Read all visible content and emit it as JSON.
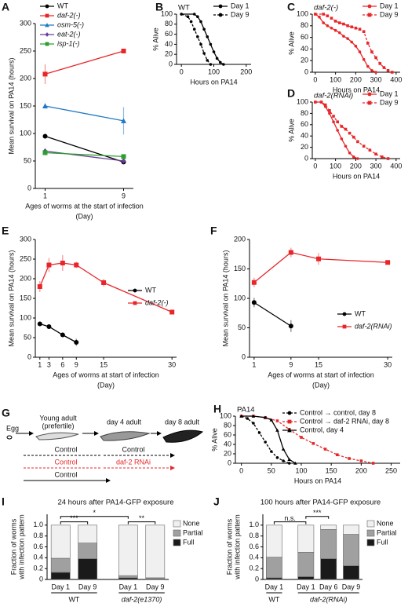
{
  "chart_data": [
    {
      "panel": "A",
      "type": "line",
      "ylabel": "Mean survival on PA14 (hours)",
      "xlabel": [
        "Ages of worms at the start of infection",
        "(Day)"
      ],
      "x": [
        1,
        9
      ],
      "xlim": [
        0,
        10
      ],
      "xticks": [
        1,
        9
      ],
      "ylim": [
        0,
        300
      ],
      "yticks": [
        0,
        50,
        100,
        150,
        200,
        250,
        300
      ],
      "legend": "top-left",
      "series": [
        {
          "name": "WT",
          "color": "#000000",
          "marker": "circle",
          "dash": false,
          "values": [
            95,
            48
          ],
          "errors": [
            3,
            3
          ]
        },
        {
          "name": "daf-2(-)",
          "color": "#e8262a",
          "marker": "square",
          "dash": false,
          "values": [
            208,
            250
          ],
          "errors": [
            18,
            4
          ]
        },
        {
          "name": "osm-5(-)",
          "color": "#1f78c8",
          "marker": "triangle",
          "dash": false,
          "values": [
            150,
            123
          ],
          "errors": [
            5,
            25
          ]
        },
        {
          "name": "eat-2(-)",
          "color": "#6a3d9a",
          "marker": "diamond",
          "dash": false,
          "values": [
            68,
            50
          ],
          "errors": [
            3,
            3
          ]
        },
        {
          "name": "isp-1(-)",
          "color": "#2ca02c",
          "marker": "square",
          "dash": false,
          "values": [
            65,
            58
          ],
          "errors": [
            3,
            3
          ]
        }
      ]
    },
    {
      "panel": "B",
      "type": "line",
      "title": "WT",
      "ylabel": "% Alive",
      "xlabel": "Hours on PA14",
      "xlim": [
        -15,
        215
      ],
      "xticks": [
        0,
        100,
        200
      ],
      "ylim": [
        0,
        100
      ],
      "yticks": [
        0,
        20,
        40,
        60,
        80,
        100
      ],
      "legend": "top-right",
      "series": [
        {
          "name": "Day 1",
          "color": "#000000",
          "marker": "circle",
          "dash": false,
          "x": [
            0,
            40,
            50,
            60,
            70,
            80,
            90,
            100,
            110,
            120,
            130
          ],
          "values": [
            100,
            100,
            95,
            85,
            70,
            55,
            40,
            25,
            12,
            4,
            0
          ]
        },
        {
          "name": "Day 9",
          "color": "#000000",
          "marker": "circle",
          "dash": true,
          "x": [
            0,
            20,
            30,
            40,
            50,
            60,
            70,
            80,
            90
          ],
          "values": [
            100,
            95,
            85,
            70,
            55,
            40,
            22,
            8,
            0
          ]
        }
      ]
    },
    {
      "panel": "C",
      "type": "line",
      "title": "daf-2(-)",
      "ylabel": "% Alive",
      "xlabel": "Hours on PA14",
      "xlim": [
        -15,
        420
      ],
      "xticks": [
        0,
        100,
        200,
        300,
        400
      ],
      "ylim": [
        0,
        100
      ],
      "yticks": [
        0,
        20,
        40,
        60,
        80,
        100
      ],
      "legend": "top-right",
      "series": [
        {
          "name": "Day 1",
          "color": "#e8262a",
          "marker": "circle",
          "dash": false,
          "x": [
            0,
            20,
            40,
            60,
            80,
            100,
            120,
            140,
            160,
            180,
            200,
            220,
            240,
            260,
            280,
            300
          ],
          "values": [
            100,
            95,
            85,
            80,
            76,
            72,
            68,
            62,
            58,
            52,
            45,
            35,
            22,
            10,
            3,
            0
          ]
        },
        {
          "name": "Day 9",
          "color": "#e8262a",
          "marker": "square",
          "dash": true,
          "x": [
            0,
            40,
            60,
            80,
            100,
            120,
            140,
            160,
            180,
            200,
            220,
            240,
            260,
            280,
            300,
            320,
            340,
            360,
            380
          ],
          "values": [
            100,
            100,
            97,
            93,
            88,
            85,
            83,
            80,
            78,
            76,
            74,
            70,
            50,
            35,
            25,
            15,
            8,
            3,
            0
          ]
        }
      ]
    },
    {
      "panel": "D",
      "type": "line",
      "title": "daf-2(RNAi)",
      "ylabel": "% Alive",
      "xlabel": "Hours on PA14",
      "xlim": [
        -15,
        420
      ],
      "xticks": [
        0,
        100,
        200,
        300,
        400
      ],
      "ylim": [
        0,
        100
      ],
      "yticks": [
        0,
        20,
        40,
        60,
        80,
        100
      ],
      "legend": "top-right",
      "series": [
        {
          "name": "Day 1",
          "color": "#e8262a",
          "marker": "circle",
          "dash": false,
          "x": [
            0,
            30,
            50,
            70,
            90,
            110,
            130,
            150,
            170,
            190,
            210
          ],
          "values": [
            100,
            100,
            92,
            80,
            65,
            50,
            35,
            22,
            10,
            3,
            0
          ]
        },
        {
          "name": "Day 9",
          "color": "#e8262a",
          "marker": "square",
          "dash": true,
          "x": [
            0,
            30,
            50,
            70,
            90,
            110,
            130,
            150,
            170,
            190,
            210,
            240,
            270,
            300,
            330,
            360
          ],
          "values": [
            100,
            100,
            95,
            85,
            75,
            65,
            57,
            52,
            45,
            38,
            30,
            22,
            15,
            8,
            3,
            0
          ]
        }
      ]
    },
    {
      "panel": "E",
      "type": "line",
      "ylabel": "Mean survival on PA14 (hours)",
      "xlabel": [
        "Ages of worms at start of infection",
        "(Day)"
      ],
      "xlim": [
        0,
        31
      ],
      "xticks": [
        1,
        3,
        6,
        9,
        15,
        30
      ],
      "ylim": [
        0,
        300
      ],
      "yticks": [
        0,
        50,
        100,
        150,
        200,
        250,
        300
      ],
      "legend": "right",
      "series": [
        {
          "name": "WT",
          "color": "#000000",
          "marker": "circle",
          "dash": false,
          "x": [
            1,
            3,
            6,
            9
          ],
          "values": [
            85,
            78,
            57,
            38
          ],
          "errors": [
            4,
            6,
            5,
            9
          ]
        },
        {
          "name": "daf-2(-)",
          "color": "#e8262a",
          "marker": "square",
          "dash": false,
          "x": [
            1,
            3,
            6,
            9,
            15,
            30
          ],
          "values": [
            180,
            235,
            240,
            235,
            190,
            115
          ],
          "errors": [
            14,
            18,
            20,
            8,
            10,
            4
          ]
        }
      ]
    },
    {
      "panel": "F",
      "type": "line",
      "ylabel": "Mean survival on PA14 (hours)",
      "xlabel": [
        "Ages of worms at start of infection",
        "(Day)"
      ],
      "xlim": [
        0,
        31
      ],
      "xticks": [
        1,
        9,
        15,
        30
      ],
      "ylim": [
        0,
        200
      ],
      "yticks": [
        0,
        50,
        100,
        150,
        200
      ],
      "legend": "bottom-right",
      "series": [
        {
          "name": "WT",
          "color": "#000000",
          "marker": "circle",
          "dash": false,
          "x": [
            1,
            9
          ],
          "values": [
            93,
            53
          ],
          "errors": [
            8,
            10
          ]
        },
        {
          "name": "daf-2(RNAi)",
          "color": "#e8262a",
          "marker": "square",
          "dash": false,
          "x": [
            1,
            9,
            15,
            30
          ],
          "values": [
            127,
            178,
            167,
            161
          ],
          "errors": [
            8,
            8,
            10,
            3
          ]
        }
      ]
    },
    {
      "panel": "H",
      "type": "line",
      "title": "PA14",
      "ylabel": "% Alive",
      "xlabel": "Hours on PA14",
      "xlim": [
        -10,
        265
      ],
      "xticks": [
        0,
        50,
        100,
        150,
        200,
        250
      ],
      "ylim": [
        0,
        100
      ],
      "yticks": [
        0,
        20,
        40,
        60,
        80,
        100
      ],
      "legend": "top-right",
      "series": [
        {
          "name": "Control → control, day 8",
          "color": "#000000",
          "marker": "circle",
          "dash": true,
          "x": [
            0,
            10,
            20,
            30,
            40,
            50,
            60,
            70,
            80
          ],
          "values": [
            100,
            95,
            85,
            65,
            45,
            25,
            12,
            5,
            0
          ]
        },
        {
          "name": "Control → daf-2 RNAi, day 8",
          "color": "#e8262a",
          "marker": "square",
          "dash": true,
          "x": [
            0,
            20,
            40,
            60,
            80,
            100,
            120,
            140,
            160,
            180,
            200,
            220
          ],
          "values": [
            100,
            100,
            97,
            90,
            72,
            55,
            42,
            30,
            18,
            10,
            5,
            0
          ]
        },
        {
          "name": "Control, day 4",
          "color": "#000000",
          "marker": "triangle",
          "dash": false,
          "x": [
            0,
            20,
            40,
            50,
            60,
            70,
            80,
            90
          ],
          "values": [
            100,
            100,
            97,
            92,
            70,
            30,
            8,
            0
          ]
        }
      ]
    },
    {
      "panel": "I",
      "type": "stacked_bar",
      "title": "24 hours after PA14-GFP exposure",
      "ylabel": [
        "Fraction of worms",
        "with infection pattern"
      ],
      "categories": [
        "Day 1",
        "Day 9",
        "Day 1",
        "Day 9"
      ],
      "groups": [
        "WT",
        "daf-2(e1370)"
      ],
      "annotations": [
        "***",
        "*",
        "**"
      ],
      "ylim": [
        0,
        1.2
      ],
      "yticks": [
        0,
        0.2,
        0.4,
        0.6,
        0.8,
        {
          "value": 1,
          "label": "1.0"
        }
      ],
      "legend": "right",
      "series": [
        {
          "name": "Full",
          "color": "#1a1a1a",
          "values": [
            0.13,
            0.38,
            0.03,
            0.01
          ]
        },
        {
          "name": "Partial",
          "color": "#a0a0a0",
          "values": [
            0.26,
            0.29,
            0.04,
            0.02
          ]
        },
        {
          "name": "None",
          "color": "#f0f0f0",
          "values": [
            0.61,
            0.33,
            0.93,
            0.97
          ]
        }
      ]
    },
    {
      "panel": "J",
      "type": "stacked_bar",
      "title": "100 hours after PA14-GFP exposure",
      "ylabel": [
        "Fraction of worms",
        "with infection pattern"
      ],
      "categories": [
        "Day 1",
        "Day 1",
        "Day 6",
        "Day 9"
      ],
      "groups": [
        "WT",
        "daf-2(RNAi)"
      ],
      "annotations": [
        "n.s.",
        "***"
      ],
      "ylim": [
        0,
        1.2
      ],
      "yticks": [
        0,
        0.2,
        0.4,
        0.6,
        0.8,
        {
          "value": 1,
          "label": "1.0"
        }
      ],
      "legend": "right",
      "series": [
        {
          "name": "Full",
          "color": "#1a1a1a",
          "values": [
            0.03,
            0.05,
            0.38,
            0.25
          ]
        },
        {
          "name": "Partial",
          "color": "#a0a0a0",
          "values": [
            0.38,
            0.45,
            0.54,
            0.58
          ]
        },
        {
          "name": "None",
          "color": "#f0f0f0",
          "values": [
            0.59,
            0.5,
            0.08,
            0.17
          ]
        }
      ]
    }
  ],
  "diagram": {
    "panel": "G",
    "egg": "Egg",
    "stages": [
      "Young adult",
      "(prefertile)",
      "day 4 adult",
      "day 8 adult"
    ],
    "rows": [
      [
        "Control",
        "Control"
      ],
      [
        "Control",
        "daf-2 RNAi"
      ],
      [
        "Control"
      ]
    ]
  }
}
